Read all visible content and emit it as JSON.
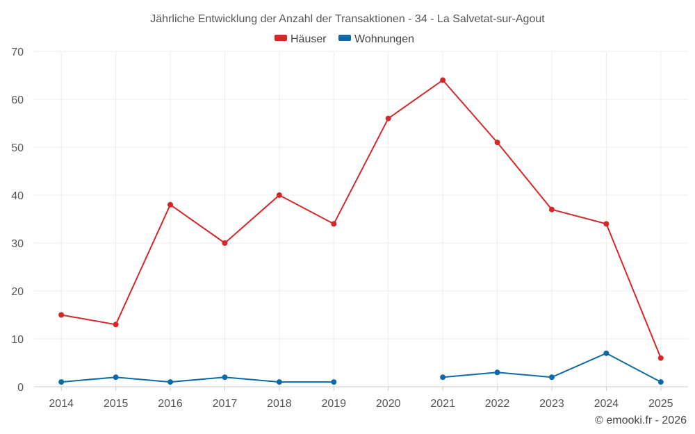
{
  "chart_data": {
    "type": "line",
    "title": "Jährliche Entwicklung der Anzahl der Transaktionen - 34 - La Salvetat-sur-Agout",
    "categories": [
      "2014",
      "2015",
      "2016",
      "2017",
      "2018",
      "2019",
      "2020",
      "2021",
      "2022",
      "2023",
      "2024",
      "2025"
    ],
    "ylim": [
      0,
      70
    ],
    "yticks": [
      0,
      10,
      20,
      30,
      40,
      50,
      60,
      70
    ],
    "xlabel": "",
    "ylabel": "",
    "grid": true,
    "legend_position": "top-center",
    "series": [
      {
        "name": "Häuser",
        "color": "#d62728",
        "values": [
          15,
          13,
          38,
          30,
          40,
          34,
          56,
          64,
          51,
          37,
          34,
          6
        ]
      },
      {
        "name": "Wohnungen",
        "color": "#0e6aa4",
        "values": [
          1,
          2,
          1,
          2,
          1,
          1,
          null,
          2,
          3,
          2,
          7,
          1
        ]
      }
    ]
  },
  "credit": "© emooki.fr - 2026"
}
